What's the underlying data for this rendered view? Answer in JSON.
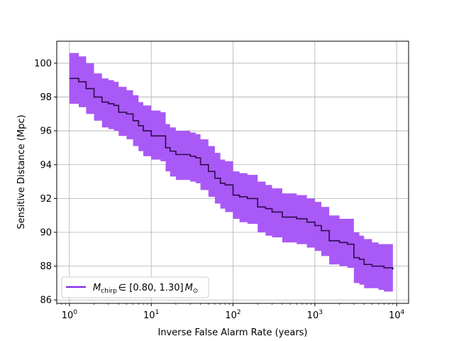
{
  "chart_data": {
    "type": "line",
    "xlabel": "Inverse False Alarm Rate (years)",
    "ylabel": "Sensitive Distance (Mpc)",
    "x_scale": "log",
    "xlim": [
      0.7,
      14000
    ],
    "ylim": [
      85.8,
      101.3
    ],
    "x_ticks": [
      1,
      10,
      100,
      1000,
      10000
    ],
    "x_tick_labels": [
      {
        "base": "10",
        "exp": "0"
      },
      {
        "base": "10",
        "exp": "1"
      },
      {
        "base": "10",
        "exp": "2"
      },
      {
        "base": "10",
        "exp": "3"
      },
      {
        "base": "10",
        "exp": "4"
      }
    ],
    "y_ticks": [
      86,
      88,
      90,
      92,
      94,
      96,
      98,
      100
    ],
    "grid": true,
    "legend_position": "lower-left",
    "series": [
      {
        "name": "M_chirp ∈ [0.80, 1.30] M_⊙",
        "legend": {
          "symbol": "M",
          "sub": "chirp",
          "middle": "∈ [0.80, 1.30]",
          "unit": "M",
          "unit_sub": "⊙"
        },
        "line_color": "#2e0a4d",
        "legend_line_color": "#7b1fe8",
        "band_color": "#a450f5",
        "x": [
          1,
          1.3,
          1.6,
          2,
          2.5,
          3,
          3.5,
          4,
          5,
          6,
          7,
          8,
          10,
          13,
          15,
          17,
          20,
          25,
          30,
          35,
          40,
          50,
          60,
          70,
          80,
          100,
          120,
          150,
          200,
          250,
          300,
          400,
          500,
          600,
          700,
          800,
          1000,
          1200,
          1500,
          2000,
          2500,
          3000,
          3500,
          4000,
          5000,
          6000,
          7000,
          9000
        ],
        "y": [
          99.1,
          98.9,
          98.5,
          98.0,
          97.7,
          97.6,
          97.5,
          97.1,
          97.0,
          96.6,
          96.3,
          96.0,
          95.7,
          95.7,
          95.0,
          94.8,
          94.6,
          94.6,
          94.5,
          94.4,
          94.0,
          93.6,
          93.2,
          92.9,
          92.8,
          92.2,
          92.1,
          92.0,
          91.5,
          91.4,
          91.2,
          90.9,
          90.9,
          90.8,
          90.8,
          90.6,
          90.4,
          90.1,
          89.5,
          89.4,
          89.3,
          88.5,
          88.4,
          88.1,
          88.0,
          88.0,
          87.9,
          87.8
        ],
        "lower": [
          97.6,
          97.4,
          97.0,
          96.6,
          96.2,
          96.1,
          96.0,
          95.7,
          95.5,
          95.1,
          94.8,
          94.5,
          94.3,
          94.2,
          93.6,
          93.3,
          93.1,
          93.1,
          93.0,
          92.9,
          92.5,
          92.1,
          91.7,
          91.4,
          91.2,
          90.8,
          90.6,
          90.5,
          90.0,
          89.8,
          89.7,
          89.4,
          89.4,
          89.3,
          89.3,
          89.1,
          88.9,
          88.6,
          88.1,
          88.0,
          87.9,
          87.0,
          86.9,
          86.7,
          86.7,
          86.6,
          86.5,
          86.4
        ],
        "upper": [
          100.6,
          100.4,
          100.0,
          99.4,
          99.1,
          99.0,
          98.9,
          98.6,
          98.4,
          98.1,
          97.7,
          97.5,
          97.2,
          97.1,
          96.4,
          96.2,
          96.0,
          96.0,
          95.9,
          95.8,
          95.5,
          95.1,
          94.7,
          94.3,
          94.2,
          93.6,
          93.5,
          93.4,
          93.0,
          92.8,
          92.6,
          92.3,
          92.3,
          92.2,
          92.2,
          92.0,
          91.8,
          91.5,
          91.0,
          90.8,
          90.8,
          90.0,
          89.8,
          89.6,
          89.4,
          89.3,
          89.3,
          89.2
        ]
      }
    ]
  }
}
